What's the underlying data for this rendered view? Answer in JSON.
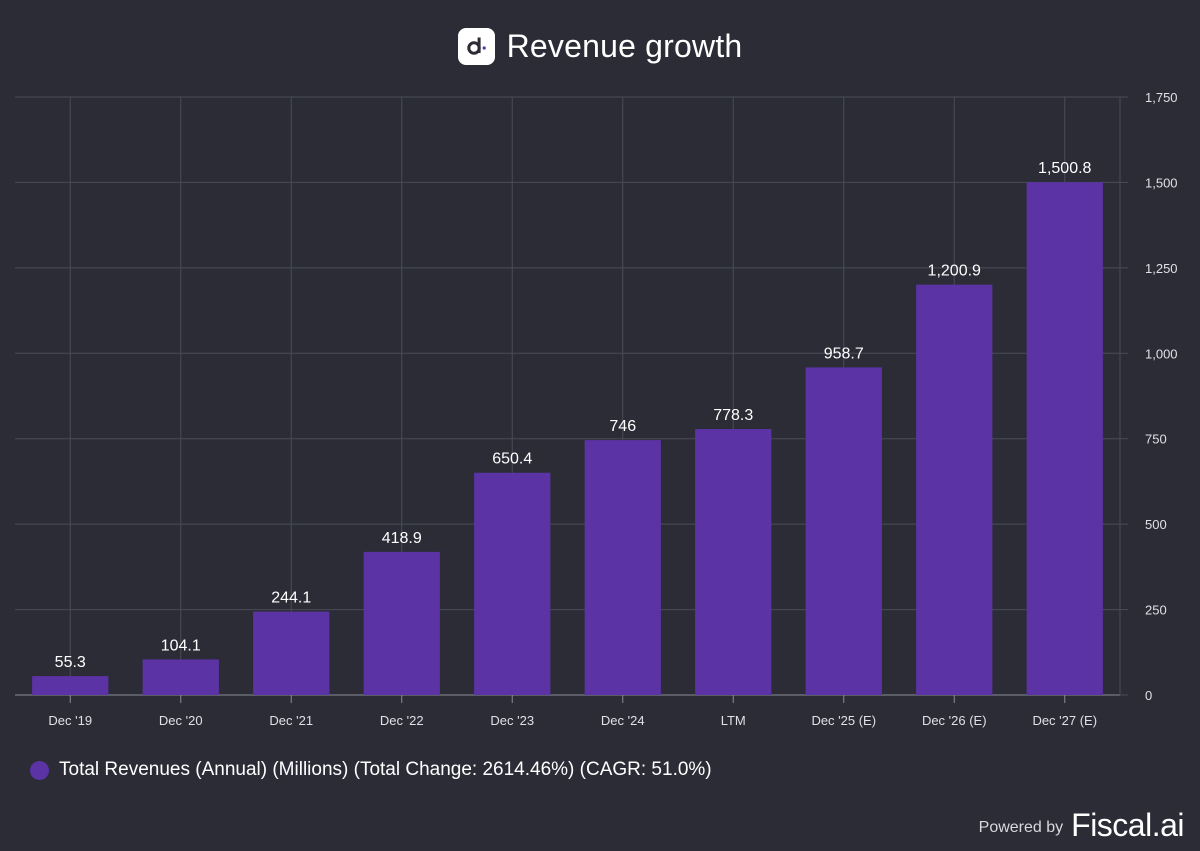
{
  "header": {
    "title": "Revenue growth",
    "logo_icon": "d-logo-icon"
  },
  "chart_data": {
    "type": "bar",
    "title": "Revenue growth",
    "categories": [
      "Dec '19",
      "Dec '20",
      "Dec '21",
      "Dec '22",
      "Dec '23",
      "Dec '24",
      "LTM",
      "Dec '25 (E)",
      "Dec '26 (E)",
      "Dec '27 (E)"
    ],
    "series": [
      {
        "name": "Total Revenues (Annual) (Millions) (Total Change: 2614.46%) (CAGR: 51.0%)",
        "values": [
          55.3,
          104.1,
          244.1,
          418.9,
          650.4,
          746,
          778.3,
          958.7,
          1200.9,
          1500.8
        ],
        "value_labels": [
          "55.3",
          "104.1",
          "244.1",
          "418.9",
          "650.4",
          "746",
          "778.3",
          "958.7",
          "1,200.9",
          "1,500.8"
        ],
        "color": "#5c33a4"
      }
    ],
    "ylim": [
      0,
      1750
    ],
    "yticks": [
      0,
      250,
      500,
      750,
      1000,
      1250,
      1500,
      1750
    ],
    "ytick_labels": [
      "0",
      "250",
      "500",
      "750",
      "1,000",
      "1,250",
      "1,500",
      "1,750"
    ],
    "y_axis_side": "right",
    "grid": true,
    "legend_position": "bottom-left"
  },
  "legend": {
    "label": "Total Revenues (Annual) (Millions) (Total Change: 2614.46%) (CAGR: 51.0%)",
    "color": "#5c33a4"
  },
  "footer": {
    "powered_by": "Powered by",
    "brand": "Fiscal.ai"
  },
  "colors": {
    "background": "#2b2c36",
    "grid": "#4a4b56",
    "bar": "#5c33a4",
    "text": "#ffffff",
    "tick_text": "#e0e0e6"
  }
}
